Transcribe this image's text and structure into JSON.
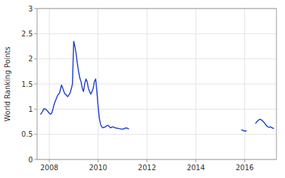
{
  "chart_data": {
    "type": "line",
    "y_label": "World Ranking Points",
    "xlim": [
      2007.5,
      2017.3
    ],
    "ylim": [
      0,
      3
    ],
    "xticks": [
      2008,
      2010,
      2012,
      2014,
      2016
    ],
    "yticks": [
      0,
      0.5,
      1,
      1.5,
      2,
      2.5,
      3
    ],
    "grid": true,
    "series": [
      {
        "color": "#2244cc",
        "x": [
          2007.65,
          2007.72,
          2007.78,
          2007.85,
          2007.92,
          2008.0,
          2008.05,
          2008.1,
          2008.15,
          2008.2,
          2008.28,
          2008.35,
          2008.42,
          2008.5,
          2008.55,
          2008.6,
          2008.65,
          2008.7,
          2008.75,
          2008.8,
          2008.85,
          2008.9,
          2008.95,
          2009.0,
          2009.05,
          2009.1,
          2009.15,
          2009.2,
          2009.25,
          2009.3,
          2009.35,
          2009.4,
          2009.45,
          2009.5,
          2009.55,
          2009.6,
          2009.65,
          2009.7,
          2009.75,
          2009.8,
          2009.85,
          2009.9,
          2009.95,
          2010.0,
          2010.05,
          2010.1,
          2010.15,
          2010.2,
          2010.25,
          2010.3,
          2010.35,
          2010.4,
          2010.45,
          2010.5,
          2010.55,
          2010.6,
          2010.7,
          2010.8,
          2010.9,
          2011.0,
          2011.1,
          2011.15,
          2011.2,
          2011.25
        ],
        "values": [
          0.9,
          0.95,
          1.01,
          1.0,
          0.97,
          0.92,
          0.9,
          0.92,
          1.0,
          1.1,
          1.2,
          1.28,
          1.32,
          1.48,
          1.42,
          1.35,
          1.3,
          1.28,
          1.25,
          1.28,
          1.32,
          1.4,
          1.5,
          2.35,
          2.25,
          2.1,
          1.9,
          1.75,
          1.62,
          1.55,
          1.42,
          1.35,
          1.5,
          1.6,
          1.55,
          1.42,
          1.35,
          1.3,
          1.35,
          1.42,
          1.55,
          1.6,
          1.35,
          1.05,
          0.82,
          0.7,
          0.65,
          0.63,
          0.64,
          0.65,
          0.67,
          0.68,
          0.66,
          0.63,
          0.64,
          0.65,
          0.63,
          0.62,
          0.61,
          0.6,
          0.62,
          0.63,
          0.62,
          0.61
        ]
      },
      {
        "color": "#2244cc",
        "x": [
          2015.88,
          2015.92,
          2015.96,
          2016.0,
          2016.03,
          2016.06
        ],
        "values": [
          0.59,
          0.58,
          0.57,
          0.57,
          0.56,
          0.57
        ]
      },
      {
        "color": "#2244cc",
        "x": [
          2016.45,
          2016.52,
          2016.58,
          2016.65,
          2016.7,
          2016.75,
          2016.8,
          2016.85,
          2016.88,
          2016.92,
          2016.95,
          2017.0,
          2017.05,
          2017.08,
          2017.12,
          2017.18
        ],
        "values": [
          0.72,
          0.76,
          0.79,
          0.8,
          0.78,
          0.76,
          0.73,
          0.7,
          0.68,
          0.66,
          0.65,
          0.64,
          0.65,
          0.64,
          0.63,
          0.62
        ]
      }
    ]
  }
}
